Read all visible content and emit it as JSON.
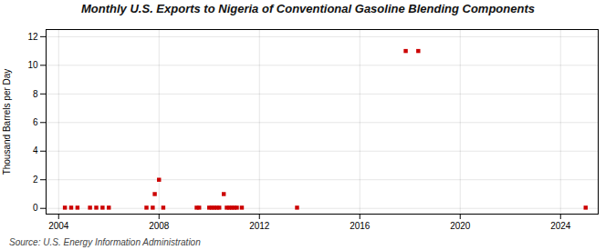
{
  "chart_data": {
    "type": "scatter",
    "title": "Monthly U.S. Exports to Nigeria of Conventional Gasoline Blending Components",
    "ylabel": "Thousand Barrels per Day",
    "source": "Source: U.S. Energy Information Administration",
    "x": [
      2004.25,
      2004.5,
      2004.75,
      2005.25,
      2005.5,
      2005.75,
      2006.0,
      2007.5,
      2007.75,
      2007.83,
      2008.0,
      2008.17,
      2009.5,
      2009.6,
      2010.0,
      2010.1,
      2010.2,
      2010.3,
      2010.4,
      2010.58,
      2010.7,
      2010.8,
      2010.9,
      2011.0,
      2011.1,
      2011.3,
      2013.5,
      2017.83,
      2018.33,
      2025.0
    ],
    "values": [
      0.05,
      0.05,
      0.05,
      0.05,
      0.05,
      0.05,
      0.05,
      0.05,
      0.05,
      1.0,
      2.0,
      0.05,
      0.05,
      0.05,
      0.05,
      0.05,
      0.05,
      0.05,
      0.05,
      1.0,
      0.05,
      0.05,
      0.05,
      0.05,
      0.05,
      0.05,
      0.05,
      11.0,
      11.0,
      0.05
    ],
    "color": "#CC0000",
    "marker": "square",
    "xlim": [
      2003.5,
      2025.5
    ],
    "ylim": [
      -0.4,
      12.5
    ],
    "xticks": [
      2004,
      2008,
      2012,
      2016,
      2020,
      2024
    ],
    "yticks": [
      0,
      2,
      4,
      6,
      8,
      10,
      12
    ],
    "grid": true
  }
}
